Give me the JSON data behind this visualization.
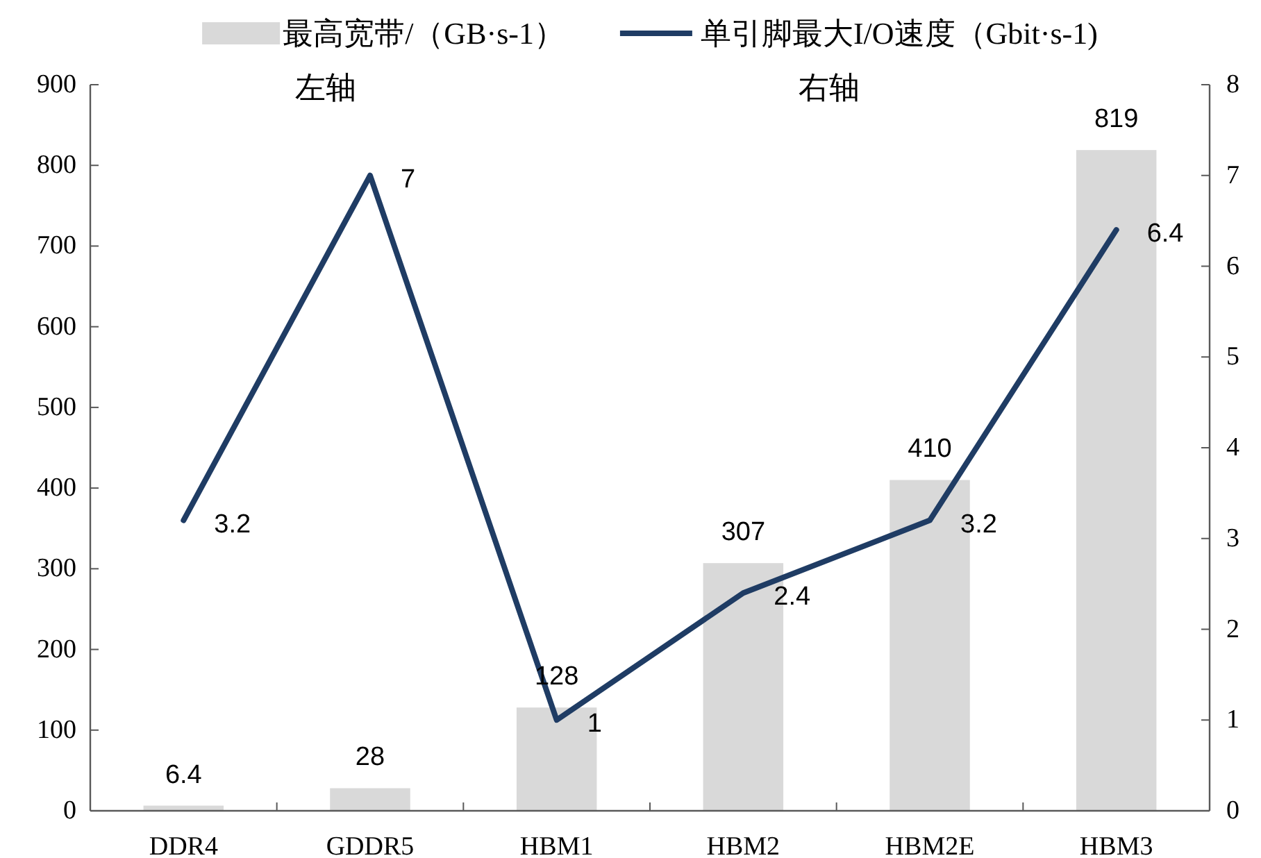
{
  "chart_data": {
    "type": "bar",
    "categories": [
      "DDR4",
      "GDDR5",
      "HBM1",
      "HBM2",
      "HBM2E",
      "HBM3"
    ],
    "series": [
      {
        "name": "最高宽带/（GB·s-1）",
        "color": "#d9d9d9",
        "values": [
          6.4,
          28,
          128,
          307,
          410,
          819
        ]
      },
      {
        "name": "单引脚最大I/O速度（Gbit·s-1)",
        "type": "line",
        "axis": "y2",
        "color": "#1f3c64",
        "values": [
          3.2,
          7,
          1,
          2.4,
          3.2,
          6.4
        ]
      }
    ],
    "ylim": [
      0,
      900
    ],
    "yticks": [
      0,
      100,
      200,
      300,
      400,
      500,
      600,
      700,
      800,
      900
    ],
    "y2lim": [
      0,
      8
    ],
    "y2ticks": [
      0,
      1,
      2,
      3,
      4,
      5,
      6,
      7,
      8
    ],
    "data_labels": true,
    "legend": "top",
    "line_style": "solid",
    "annotations": [
      "左轴",
      "右轴"
    ]
  }
}
